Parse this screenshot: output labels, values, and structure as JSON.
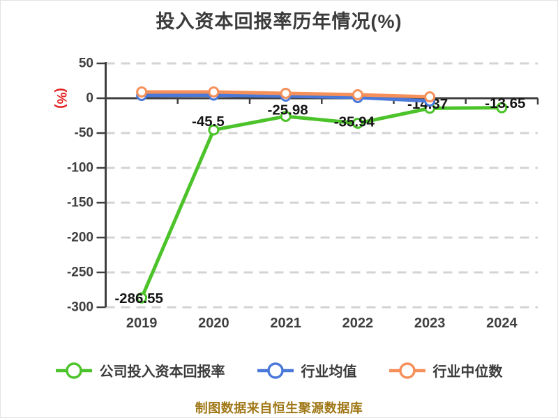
{
  "title": "投入资本回报率历年情况(%)",
  "footer": "制图数据来自恒生聚源数据库",
  "colors": {
    "company": "#4cc32a",
    "industry_mean": "#4b79d9",
    "industry_median": "#f5905a",
    "grid": "#d3d3d3",
    "axis": "#3f3f3f",
    "tick_text": "#3f3f3f",
    "data_label": "#141414",
    "y_axis_name": "#e32020",
    "title": "#3b3b3b",
    "footer": "#a07818"
  },
  "chart_data": {
    "type": "line",
    "title": "投入资本回报率历年情况(%)",
    "ylabel": "(%)",
    "categories": [
      "2019",
      "2020",
      "2021",
      "2022",
      "2023",
      "2024"
    ],
    "y_ticks": [
      50,
      0,
      -50,
      -100,
      -150,
      -200,
      -250,
      -300
    ],
    "y_tick_labels": [
      "50",
      "0",
      "-50",
      "-100",
      "-150",
      "-200",
      "-250",
      "-300"
    ],
    "ylim": [
      -300,
      50
    ],
    "grid": "horizontal-dashed",
    "legend_position": "bottom",
    "series": [
      {
        "name": "公司投入资本回报率",
        "color": "#4cc32a",
        "values": [
          -286.55,
          -45.5,
          -25.98,
          -35.94,
          -14.37,
          -13.65
        ],
        "labels": [
          "-286.55",
          "-45.5",
          "-25.98",
          "-35.94",
          "-14.37",
          "-13.65"
        ]
      },
      {
        "name": "行业均值",
        "color": "#4b79d9",
        "values": [
          4,
          4.5,
          3,
          1,
          -4
        ],
        "labels": []
      },
      {
        "name": "行业中位数",
        "color": "#f5905a",
        "values": [
          9,
          9,
          7,
          5,
          2
        ],
        "labels": []
      }
    ]
  },
  "legend": {
    "items": [
      {
        "label": "公司投入资本回报率"
      },
      {
        "label": "行业均值"
      },
      {
        "label": "行业中位数"
      }
    ]
  }
}
